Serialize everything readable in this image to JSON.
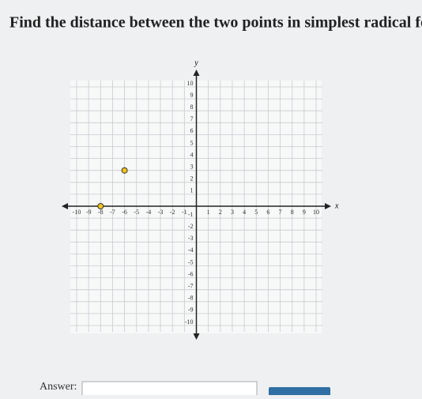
{
  "chart_data": {
    "type": "scatter",
    "title": "Find the distance between the two points in simplest radical form.",
    "x_label": "x",
    "y_label": "y",
    "x": [
      -8,
      -6
    ],
    "values": [
      0,
      3
    ],
    "color": "#f5c518",
    "xlim": [
      -10,
      10
    ],
    "ylim": [
      -10,
      10
    ],
    "xticks": [
      -10,
      -9,
      -8,
      -7,
      -6,
      -5,
      -4,
      -3,
      -2,
      -1,
      1,
      2,
      3,
      4,
      5,
      6,
      7,
      8,
      9,
      10
    ],
    "yticks": [
      -10,
      -9,
      -8,
      -7,
      -6,
      -5,
      -4,
      -3,
      -2,
      -1,
      1,
      2,
      3,
      4,
      5,
      6,
      7,
      8,
      9,
      10
    ],
    "grid": true
  },
  "answer": {
    "label": "Answer:"
  }
}
